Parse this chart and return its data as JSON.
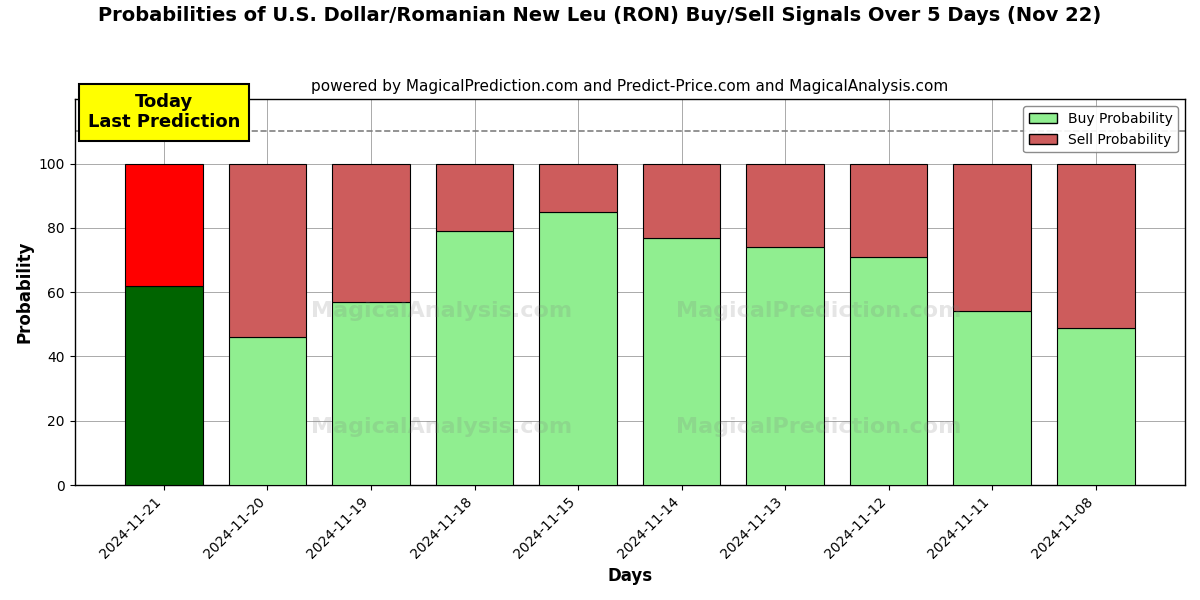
{
  "title": "Probabilities of U.S. Dollar/Romanian New Leu (RON) Buy/Sell Signals Over 5 Days (Nov 22)",
  "subtitle": "powered by MagicalPrediction.com and Predict-Price.com and MagicalAnalysis.com",
  "xlabel": "Days",
  "ylabel": "Probability",
  "categories": [
    "2024-11-21",
    "2024-11-20",
    "2024-11-19",
    "2024-11-18",
    "2024-11-15",
    "2024-11-14",
    "2024-11-13",
    "2024-11-12",
    "2024-11-11",
    "2024-11-08"
  ],
  "buy_values": [
    62,
    46,
    57,
    79,
    85,
    77,
    74,
    71,
    54,
    49
  ],
  "sell_values": [
    38,
    54,
    43,
    21,
    15,
    23,
    26,
    29,
    46,
    51
  ],
  "today_buy_color": "#006400",
  "today_sell_color": "#ff0000",
  "buy_color": "#90EE90",
  "sell_color": "#CD5C5C",
  "ylim": [
    0,
    120
  ],
  "yticks": [
    0,
    20,
    40,
    60,
    80,
    100
  ],
  "dashed_line_y": 110,
  "annotation_text": "Today\nLast Prediction",
  "annotation_bg": "#ffff00",
  "legend_buy_label": "Buy Probability",
  "legend_sell_label": "Sell Probability",
  "title_fontsize": 14,
  "subtitle_fontsize": 11,
  "label_fontsize": 12,
  "tick_fontsize": 10,
  "background_color": "#ffffff",
  "grid_color": "#aaaaaa"
}
